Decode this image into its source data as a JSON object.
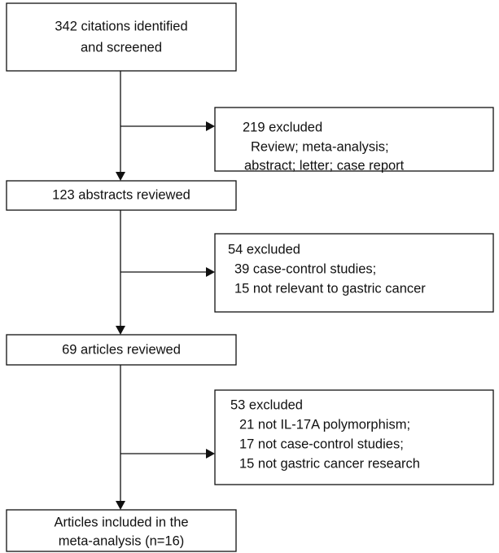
{
  "nodes": [
    {
      "lines": [
        "342 citations identified",
        "and screened"
      ]
    },
    {
      "lines": [
        "219 excluded",
        "Review; meta-analysis;",
        "abstract; letter; case report"
      ]
    },
    {
      "lines": [
        "123 abstracts reviewed"
      ]
    },
    {
      "lines": [
        "54 excluded",
        "39 case-control studies;",
        "15 not relevant to gastric cancer"
      ]
    },
    {
      "lines": [
        "69 articles reviewed"
      ]
    },
    {
      "lines": [
        "53 excluded",
        "21 not IL-17A polymorphism;",
        "17 not case-control studies;",
        "15 not gastric cancer research"
      ]
    },
    {
      "lines": [
        "Articles included in the",
        "meta-analysis (n=16)"
      ]
    }
  ]
}
